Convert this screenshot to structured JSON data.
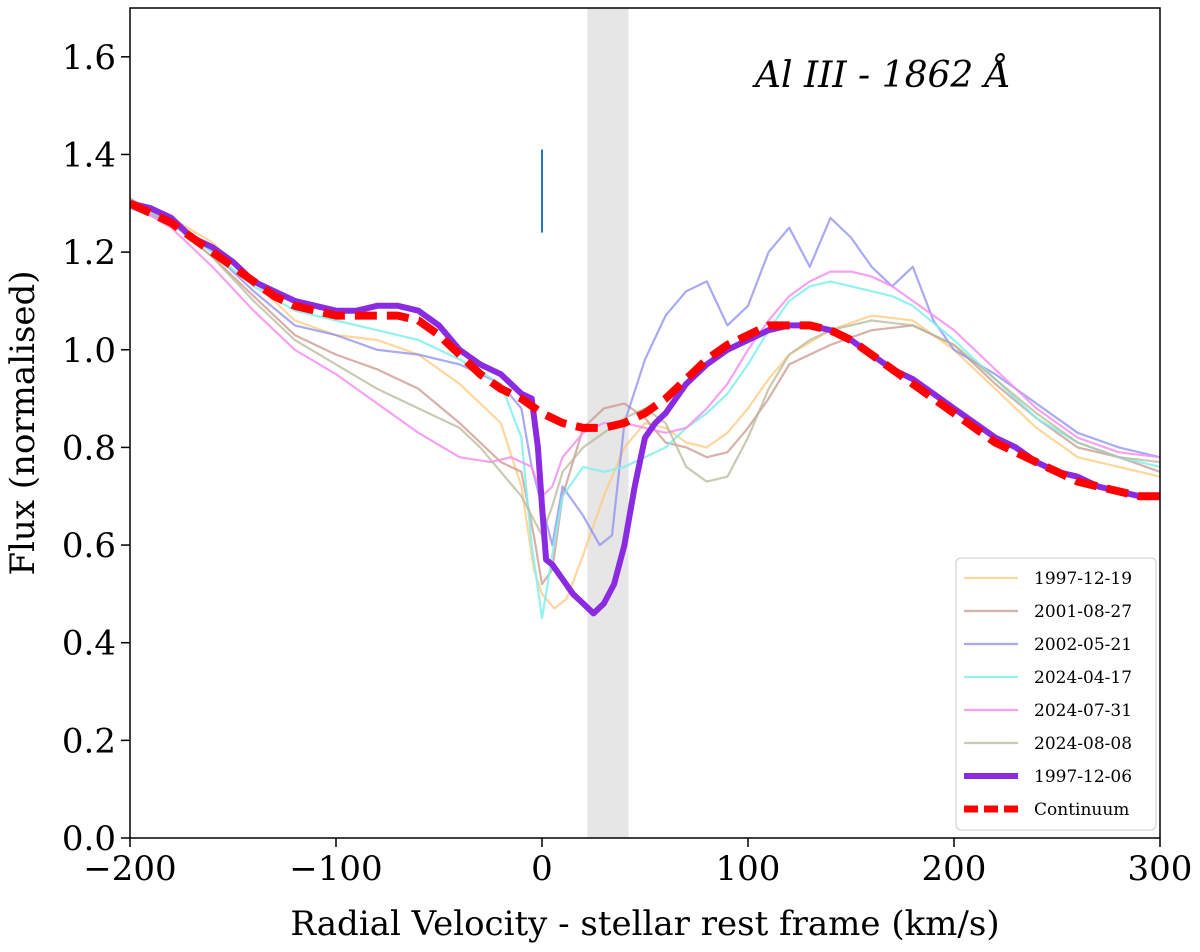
{
  "chart_data": {
    "type": "line",
    "title": "",
    "annotation": "Al III - 1862 Å",
    "xlabel": "Radial Velocity - stellar rest frame (km/s)",
    "ylabel": "Flux (normalised)",
    "xlim": [
      -200,
      300
    ],
    "ylim": [
      0.0,
      1.7
    ],
    "xticks": [
      -200,
      -100,
      0,
      100,
      200,
      300
    ],
    "xtick_labels": [
      "−200",
      "−100",
      "0",
      "100",
      "200",
      "300"
    ],
    "yticks": [
      0.0,
      0.2,
      0.4,
      0.6,
      0.8,
      1.0,
      1.2,
      1.4,
      1.6
    ],
    "ytick_labels": [
      "0.0",
      "0.2",
      "0.4",
      "0.6",
      "0.8",
      "1.0",
      "1.2",
      "1.4",
      "1.6"
    ],
    "grid": false,
    "legend_position": "bottom-right",
    "shaded_band": {
      "x_range": [
        22,
        42
      ],
      "color": "#e6e6e6"
    },
    "marker_line": {
      "x": 0,
      "y_range": [
        1.24,
        1.41
      ],
      "color": "#1f77b4"
    },
    "series": [
      {
        "name": "1997-12-19",
        "color": "#ffc87a",
        "width": 2.2,
        "opacity": 0.75,
        "x": [
          -200,
          -180,
          -160,
          -140,
          -120,
          -100,
          -80,
          -60,
          -40,
          -20,
          -10,
          -4,
          0,
          6,
          12,
          20,
          30,
          40,
          50,
          60,
          70,
          80,
          90,
          100,
          110,
          120,
          140,
          160,
          180,
          200,
          220,
          240,
          260,
          280,
          300
        ],
        "y": [
          1.3,
          1.27,
          1.22,
          1.14,
          1.06,
          1.03,
          1.02,
          0.99,
          0.93,
          0.85,
          0.72,
          0.55,
          0.5,
          0.47,
          0.49,
          0.58,
          0.7,
          0.8,
          0.85,
          0.84,
          0.81,
          0.8,
          0.83,
          0.88,
          0.94,
          0.99,
          1.04,
          1.07,
          1.06,
          1.0,
          0.92,
          0.84,
          0.78,
          0.76,
          0.74
        ]
      },
      {
        "name": "2001-08-27",
        "color": "#c9958c",
        "width": 2.2,
        "opacity": 0.75,
        "x": [
          -200,
          -180,
          -160,
          -140,
          -120,
          -100,
          -80,
          -60,
          -40,
          -20,
          -10,
          -4,
          0,
          5,
          10,
          20,
          30,
          40,
          50,
          60,
          70,
          80,
          90,
          100,
          110,
          120,
          140,
          160,
          180,
          200,
          220,
          240,
          260,
          280,
          300
        ],
        "y": [
          1.31,
          1.26,
          1.19,
          1.11,
          1.03,
          0.99,
          0.96,
          0.92,
          0.85,
          0.77,
          0.75,
          0.62,
          0.52,
          0.55,
          0.7,
          0.84,
          0.88,
          0.89,
          0.86,
          0.81,
          0.8,
          0.78,
          0.79,
          0.84,
          0.9,
          0.97,
          1.01,
          1.04,
          1.05,
          1.01,
          0.93,
          0.86,
          0.8,
          0.78,
          0.75
        ]
      },
      {
        "name": "2002-05-21",
        "color": "#8c8cf0",
        "width": 2.2,
        "opacity": 0.75,
        "x": [
          -200,
          -180,
          -160,
          -140,
          -120,
          -100,
          -80,
          -60,
          -40,
          -20,
          -10,
          -5,
          0,
          5,
          10,
          20,
          28,
          34,
          40,
          50,
          60,
          70,
          80,
          90,
          100,
          110,
          120,
          130,
          140,
          150,
          160,
          170,
          180,
          190,
          200,
          220,
          240,
          260,
          280,
          300
        ],
        "y": [
          1.29,
          1.26,
          1.2,
          1.12,
          1.05,
          1.03,
          1.0,
          0.99,
          0.97,
          0.93,
          0.88,
          0.76,
          0.68,
          0.6,
          0.72,
          0.66,
          0.6,
          0.62,
          0.85,
          0.98,
          1.07,
          1.12,
          1.14,
          1.05,
          1.09,
          1.2,
          1.25,
          1.17,
          1.27,
          1.23,
          1.17,
          1.13,
          1.17,
          1.06,
          1.0,
          0.95,
          0.89,
          0.83,
          0.8,
          0.78
        ]
      },
      {
        "name": "2024-04-17",
        "color": "#7ff0ec",
        "width": 2.2,
        "opacity": 0.85,
        "x": [
          -200,
          -180,
          -160,
          -140,
          -120,
          -100,
          -80,
          -60,
          -40,
          -20,
          -10,
          -5,
          0,
          5,
          10,
          20,
          30,
          40,
          50,
          60,
          70,
          80,
          90,
          100,
          110,
          120,
          130,
          140,
          150,
          160,
          170,
          180,
          200,
          220,
          240,
          260,
          280,
          300
        ],
        "y": [
          1.3,
          1.26,
          1.2,
          1.13,
          1.08,
          1.06,
          1.04,
          1.02,
          0.98,
          0.93,
          0.82,
          0.6,
          0.45,
          0.58,
          0.7,
          0.76,
          0.75,
          0.76,
          0.78,
          0.8,
          0.84,
          0.87,
          0.91,
          0.97,
          1.04,
          1.1,
          1.13,
          1.14,
          1.13,
          1.12,
          1.11,
          1.09,
          1.02,
          0.94,
          0.86,
          0.81,
          0.78,
          0.76
        ]
      },
      {
        "name": "2024-07-31",
        "color": "#f590f0",
        "width": 2.2,
        "opacity": 0.85,
        "x": [
          -200,
          -180,
          -160,
          -140,
          -120,
          -100,
          -80,
          -60,
          -40,
          -25,
          -15,
          -5,
          0,
          5,
          10,
          20,
          30,
          40,
          50,
          60,
          70,
          80,
          90,
          100,
          110,
          120,
          130,
          140,
          150,
          160,
          170,
          180,
          200,
          220,
          240,
          260,
          280,
          300
        ],
        "y": [
          1.3,
          1.25,
          1.17,
          1.08,
          1.0,
          0.95,
          0.89,
          0.83,
          0.78,
          0.77,
          0.78,
          0.76,
          0.7,
          0.72,
          0.78,
          0.83,
          0.85,
          0.85,
          0.84,
          0.83,
          0.84,
          0.88,
          0.93,
          1.0,
          1.06,
          1.11,
          1.14,
          1.16,
          1.16,
          1.15,
          1.13,
          1.1,
          1.04,
          0.96,
          0.88,
          0.82,
          0.79,
          0.78
        ]
      },
      {
        "name": "2024-08-08",
        "color": "#b8b89a",
        "width": 2.2,
        "opacity": 0.75,
        "x": [
          -200,
          -180,
          -160,
          -140,
          -120,
          -100,
          -80,
          -60,
          -40,
          -30,
          -20,
          -10,
          -5,
          0,
          5,
          10,
          20,
          30,
          40,
          50,
          60,
          70,
          80,
          90,
          100,
          110,
          120,
          130,
          140,
          160,
          180,
          200,
          220,
          240,
          260,
          280,
          300
        ],
        "y": [
          1.3,
          1.26,
          1.19,
          1.1,
          1.02,
          0.97,
          0.92,
          0.88,
          0.84,
          0.8,
          0.75,
          0.7,
          0.66,
          0.62,
          0.68,
          0.75,
          0.8,
          0.83,
          0.86,
          0.88,
          0.85,
          0.76,
          0.73,
          0.74,
          0.82,
          0.92,
          0.99,
          1.02,
          1.04,
          1.06,
          1.05,
          1.01,
          0.94,
          0.87,
          0.81,
          0.78,
          0.77
        ]
      },
      {
        "name": "1997-12-06",
        "color": "#8a2be2",
        "width": 6,
        "opacity": 1,
        "x": [
          -200,
          -190,
          -180,
          -170,
          -160,
          -150,
          -140,
          -130,
          -120,
          -110,
          -100,
          -90,
          -80,
          -70,
          -60,
          -50,
          -40,
          -30,
          -20,
          -10,
          -5,
          -2,
          0,
          2,
          5,
          10,
          15,
          20,
          25,
          30,
          35,
          40,
          45,
          50,
          55,
          60,
          70,
          80,
          90,
          100,
          110,
          120,
          130,
          140,
          150,
          160,
          170,
          180,
          190,
          200,
          210,
          220,
          230,
          240,
          250,
          260,
          270,
          280,
          290,
          300
        ],
        "y": [
          1.3,
          1.29,
          1.27,
          1.23,
          1.21,
          1.18,
          1.14,
          1.12,
          1.1,
          1.09,
          1.08,
          1.08,
          1.09,
          1.09,
          1.08,
          1.05,
          1.0,
          0.97,
          0.95,
          0.91,
          0.9,
          0.8,
          0.68,
          0.57,
          0.56,
          0.53,
          0.5,
          0.48,
          0.46,
          0.48,
          0.52,
          0.6,
          0.72,
          0.82,
          0.85,
          0.87,
          0.93,
          0.97,
          1.0,
          1.02,
          1.04,
          1.05,
          1.05,
          1.04,
          1.02,
          0.99,
          0.96,
          0.94,
          0.91,
          0.88,
          0.85,
          0.82,
          0.8,
          0.77,
          0.75,
          0.74,
          0.72,
          0.71,
          0.7,
          0.7
        ]
      },
      {
        "name": "Continuum",
        "color": "#ff0000",
        "width": 8,
        "opacity": 1,
        "dashed": true,
        "x": [
          -200,
          -190,
          -180,
          -170,
          -160,
          -150,
          -140,
          -130,
          -120,
          -110,
          -100,
          -90,
          -80,
          -70,
          -60,
          -50,
          -40,
          -30,
          -20,
          -10,
          0,
          10,
          20,
          30,
          40,
          50,
          60,
          70,
          80,
          90,
          100,
          110,
          120,
          130,
          140,
          150,
          160,
          170,
          180,
          190,
          200,
          210,
          220,
          230,
          240,
          250,
          260,
          270,
          280,
          290,
          300
        ],
        "y": [
          1.3,
          1.28,
          1.26,
          1.23,
          1.2,
          1.17,
          1.14,
          1.11,
          1.09,
          1.08,
          1.07,
          1.07,
          1.07,
          1.07,
          1.06,
          1.03,
          0.99,
          0.95,
          0.92,
          0.9,
          0.87,
          0.85,
          0.84,
          0.84,
          0.85,
          0.87,
          0.9,
          0.94,
          0.98,
          1.01,
          1.03,
          1.05,
          1.05,
          1.05,
          1.04,
          1.02,
          0.99,
          0.96,
          0.93,
          0.9,
          0.87,
          0.84,
          0.81,
          0.79,
          0.77,
          0.75,
          0.73,
          0.72,
          0.71,
          0.7,
          0.7
        ]
      }
    ]
  }
}
